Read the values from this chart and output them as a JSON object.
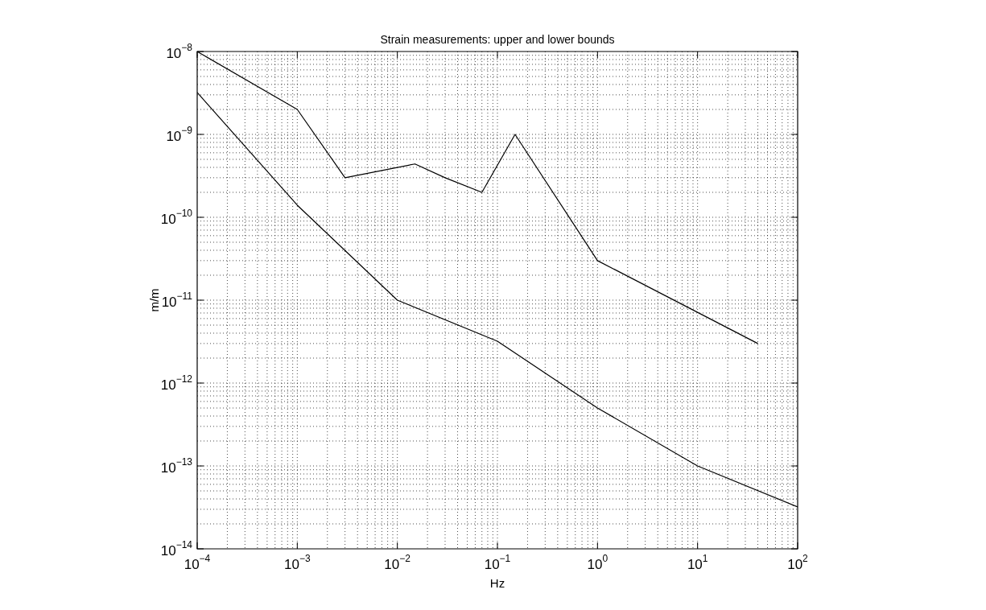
{
  "chart_data": {
    "type": "line",
    "title": "Strain measurements: upper and lower bounds",
    "xlabel": "Hz",
    "ylabel": "m/m",
    "log": "xy",
    "grid": true,
    "legend": false,
    "marker": "none",
    "line_style": "solid",
    "xlim": [
      0.0001,
      100
    ],
    "ylim": [
      1e-14,
      1e-08
    ],
    "xticks": [
      {
        "value": 0.0001,
        "label": "10$^{−4}$"
      },
      {
        "value": 0.001,
        "label": "10$^{−3}$"
      },
      {
        "value": 0.01,
        "label": "10$^{−2}$"
      },
      {
        "value": 0.1,
        "label": "10$^{−1}$"
      },
      {
        "value": 1,
        "label": "10$^{0}$"
      },
      {
        "value": 10,
        "label": "10$^{1}$"
      },
      {
        "value": 100,
        "label": "10$^{2}$"
      }
    ],
    "yticks": [
      {
        "value": 1e-14,
        "label": "10$^{−14}$"
      },
      {
        "value": 1e-13,
        "label": "10$^{−13}$"
      },
      {
        "value": 1e-12,
        "label": "10$^{−12}$"
      },
      {
        "value": 1e-11,
        "label": "10$^{−11}$"
      },
      {
        "value": 1e-10,
        "label": "10$^{−10}$"
      },
      {
        "value": 1e-09,
        "label": "10$^{−9}$"
      },
      {
        "value": 1e-08,
        "label": "10$^{−8}$"
      }
    ],
    "series": [
      {
        "color": "#000000",
        "x": [
          0.0001,
          0.001,
          0.003,
          0.015,
          0.03,
          0.07,
          0.15,
          1,
          40
        ],
        "values": [
          1e-08,
          2e-09,
          3e-10,
          4.4e-10,
          3e-10,
          2e-10,
          1e-09,
          3e-11,
          3e-12
        ]
      },
      {
        "color": "#000000",
        "x": [
          0.0001,
          0.001,
          0.01,
          0.1,
          1,
          10,
          100
        ],
        "values": [
          3.2e-09,
          1.4e-10,
          1e-11,
          3.2e-12,
          5e-13,
          1e-13,
          3.2e-14
        ]
      }
    ]
  }
}
